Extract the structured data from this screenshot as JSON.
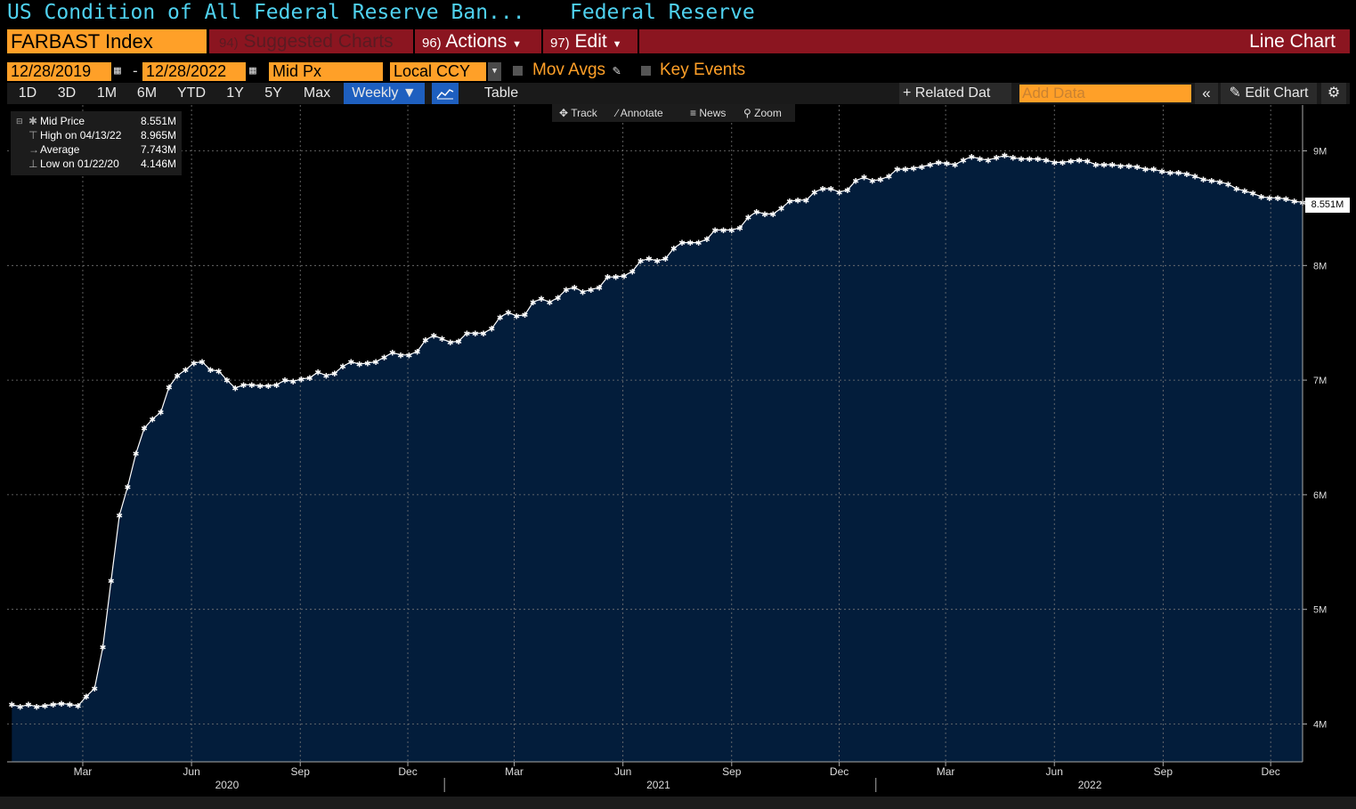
{
  "header": {
    "title": "US Condition of All Federal Reserve Ban...",
    "source": "Federal Reserve"
  },
  "toolbar": {
    "ticker": "FARBAST Index",
    "suggested_num": "94)",
    "suggested_label": "Suggested Charts",
    "actions_num": "96)",
    "actions_label": "Actions",
    "edit_num": "97)",
    "edit_label": "Edit",
    "chart_type": "Line Chart"
  },
  "range": {
    "start_date": "12/28/2019",
    "dash": "-",
    "end_date": "12/28/2022",
    "price_field": "Mid Px",
    "currency": "Local CCY",
    "mov_avgs": "Mov Avgs",
    "key_events": "Key Events"
  },
  "periods": [
    "1D",
    "3D",
    "1M",
    "6M",
    "YTD",
    "1Y",
    "5Y",
    "Max"
  ],
  "frequency": "Weekly ▼",
  "table_label": "Table",
  "related_data": "+ Related Dat",
  "add_data_placeholder": "Add Data",
  "edit_chart": "Edit Chart",
  "chart_tools": {
    "track": "Track",
    "annotate": "Annotate",
    "news": "News",
    "zoom": "Zoom"
  },
  "legend": {
    "mid_label": "Mid Price",
    "mid_value": "8.551M",
    "high_label": "High on 04/13/22",
    "high_value": "8.965M",
    "avg_label": "Average",
    "avg_value": "7.743M",
    "low_label": "Low on 01/22/20",
    "low_value": "4.146M"
  },
  "last_value_label": "8.551M",
  "colors": {
    "accent": "#ffa028",
    "title": "#4fd1ef",
    "red_bar": "#8b1520",
    "area": "#031d3b"
  },
  "chart_data": {
    "type": "area",
    "ylim": [
      3.67,
      9.4
    ],
    "y_ticks": [
      {
        "v": 4,
        "label": "4M"
      },
      {
        "v": 5,
        "label": "5M"
      },
      {
        "v": 6,
        "label": "6M"
      },
      {
        "v": 7,
        "label": "7M"
      },
      {
        "v": 8,
        "label": "8M"
      },
      {
        "v": 9,
        "label": "9M"
      }
    ],
    "x_start": "2019-12-28",
    "x_end": "2022-12-28",
    "month_ticks": [
      {
        "date": "2020-03-01",
        "label": "Mar"
      },
      {
        "date": "2020-06-01",
        "label": "Jun"
      },
      {
        "date": "2020-09-01",
        "label": "Sep"
      },
      {
        "date": "2020-12-01",
        "label": "Dec"
      },
      {
        "date": "2021-03-01",
        "label": "Mar"
      },
      {
        "date": "2021-06-01",
        "label": "Jun"
      },
      {
        "date": "2021-09-01",
        "label": "Sep"
      },
      {
        "date": "2021-12-01",
        "label": "Dec"
      },
      {
        "date": "2022-03-01",
        "label": "Mar"
      },
      {
        "date": "2022-06-01",
        "label": "Jun"
      },
      {
        "date": "2022-09-01",
        "label": "Sep"
      },
      {
        "date": "2022-12-01",
        "label": "Dec"
      }
    ],
    "year_ticks": [
      {
        "date": "2020-07-01",
        "label": "2020"
      },
      {
        "date": "2021-07-01",
        "label": "2021"
      },
      {
        "date": "2022-07-01",
        "label": "2022"
      }
    ],
    "year_boundaries": [
      "2021-01-01",
      "2022-01-01",
      "2023-01-01"
    ],
    "first_date": "2020-01-01",
    "interval_days": 7,
    "values": [
      4.17,
      4.15,
      4.17,
      4.15,
      4.16,
      4.17,
      4.18,
      4.17,
      4.16,
      4.24,
      4.31,
      4.67,
      5.25,
      5.82,
      6.07,
      6.36,
      6.58,
      6.66,
      6.72,
      6.94,
      7.04,
      7.09,
      7.15,
      7.16,
      7.09,
      7.08,
      7.0,
      6.93,
      6.96,
      6.96,
      6.95,
      6.95,
      6.96,
      7.0,
      6.99,
      7.01,
      7.02,
      7.07,
      7.04,
      7.06,
      7.12,
      7.16,
      7.14,
      7.15,
      7.16,
      7.2,
      7.24,
      7.22,
      7.22,
      7.25,
      7.35,
      7.39,
      7.36,
      7.33,
      7.34,
      7.41,
      7.41,
      7.41,
      7.45,
      7.55,
      7.59,
      7.56,
      7.57,
      7.68,
      7.71,
      7.68,
      7.72,
      7.79,
      7.81,
      7.77,
      7.79,
      7.81,
      7.9,
      7.9,
      7.91,
      7.95,
      8.04,
      8.06,
      8.04,
      8.06,
      8.15,
      8.2,
      8.2,
      8.2,
      8.23,
      8.31,
      8.31,
      8.31,
      8.33,
      8.42,
      8.47,
      8.45,
      8.45,
      8.5,
      8.56,
      8.57,
      8.57,
      8.64,
      8.67,
      8.67,
      8.64,
      8.66,
      8.74,
      8.77,
      8.74,
      8.75,
      8.78,
      8.84,
      8.84,
      8.85,
      8.86,
      8.88,
      8.9,
      8.89,
      8.88,
      8.92,
      8.95,
      8.93,
      8.92,
      8.94,
      8.96,
      8.94,
      8.93,
      8.93,
      8.93,
      8.92,
      8.9,
      8.9,
      8.91,
      8.92,
      8.91,
      8.88,
      8.88,
      8.88,
      8.87,
      8.87,
      8.86,
      8.84,
      8.84,
      8.82,
      8.81,
      8.81,
      8.8,
      8.78,
      8.75,
      8.74,
      8.73,
      8.71,
      8.67,
      8.65,
      8.63,
      8.6,
      8.59,
      8.59,
      8.58,
      8.56,
      8.551
    ]
  }
}
